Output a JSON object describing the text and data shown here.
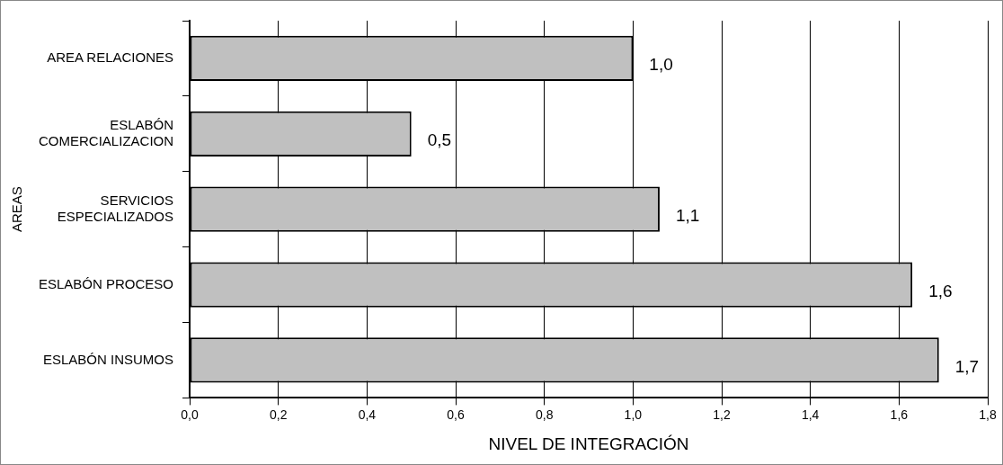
{
  "chart_data": {
    "type": "bar",
    "orientation": "horizontal",
    "xlabel": "NIVEL DE INTEGRACIÓN",
    "ylabel": "AREAS",
    "categories": [
      "AREA RELACIONES",
      "ESLABÓN COMERCIALIZACION",
      "SERVICIOS ESPECIALIZADOS",
      "ESLABÓN PROCESO",
      "ESLABÓN INSUMOS"
    ],
    "values": [
      1.0,
      0.5,
      1.06,
      1.63,
      1.69
    ],
    "value_labels": [
      "1,0",
      "0,5",
      "1,1",
      "1,6",
      "1,7"
    ],
    "color": "#c0c0c0",
    "xlim": [
      0,
      1.8
    ],
    "xticks": [
      {
        "value": 0,
        "label": "0,0"
      },
      {
        "value": 0.2,
        "label": "0,2"
      },
      {
        "value": 0.4,
        "label": "0,4"
      },
      {
        "value": 0.6,
        "label": "0,6"
      },
      {
        "value": 0.8,
        "label": "0,8"
      },
      {
        "value": 1.0,
        "label": "1,0"
      },
      {
        "value": 1.2,
        "label": "1,2"
      },
      {
        "value": 1.4,
        "label": "1,4"
      },
      {
        "value": 1.6,
        "label": "1,6"
      },
      {
        "value": 1.8,
        "label": "1,8"
      }
    ],
    "grid": "x",
    "legend": false
  }
}
